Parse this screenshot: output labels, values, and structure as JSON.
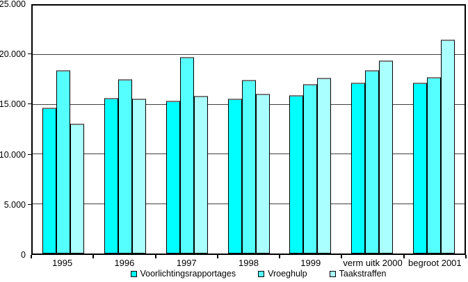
{
  "chart_data": {
    "type": "bar",
    "title": "",
    "categories": [
      "1995",
      "1996",
      "1997",
      "1998",
      "1999",
      "verm uitk 2000",
      "begroot 2001"
    ],
    "series": [
      {
        "name": "Voorlichtingsrapportages",
        "color": "#00FFFF",
        "values": [
          14700,
          15700,
          15400,
          15600,
          16000,
          17200,
          17200
        ]
      },
      {
        "name": "Vroeghulp",
        "color": "#55FFFF",
        "values": [
          18500,
          17600,
          19800,
          17500,
          17100,
          18500,
          17800
        ]
      },
      {
        "name": "Taakstraffen",
        "color": "#AAFFFF",
        "values": [
          13100,
          15600,
          15900,
          16100,
          17700,
          19500,
          21600
        ]
      }
    ],
    "ylim": [
      0,
      25000
    ],
    "ytick_interval": 5000,
    "ytick_labels": [
      "0",
      "5.000",
      "10.000",
      "15.000",
      "20.000",
      "25.000"
    ],
    "grid": true,
    "grid_color": "#404040",
    "legend_position": "bottom"
  }
}
